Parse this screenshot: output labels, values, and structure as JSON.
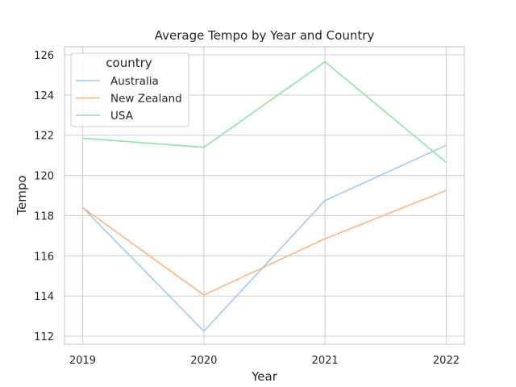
{
  "chart_data": {
    "type": "line",
    "title": "Average Tempo by Year and Country",
    "xlabel": "Year",
    "ylabel": "Tempo",
    "x": [
      2019,
      2020,
      2021,
      2022
    ],
    "xlim": [
      2018.85,
      2022.15
    ],
    "ylim": [
      111.6,
      126.4
    ],
    "yticks": [
      112,
      114,
      116,
      118,
      120,
      122,
      124,
      126
    ],
    "grid": true,
    "legend": {
      "title": "country",
      "position": "top-left"
    },
    "series": [
      {
        "name": "Australia",
        "color": "#a1c9f4",
        "values": [
          118.4,
          112.25,
          118.75,
          121.5
        ]
      },
      {
        "name": "New Zealand",
        "color": "#ffb482",
        "values": [
          118.4,
          114.05,
          116.85,
          119.25
        ]
      },
      {
        "name": "USA",
        "color": "#8de5a1",
        "values": [
          121.85,
          121.4,
          125.65,
          120.65
        ]
      }
    ]
  }
}
